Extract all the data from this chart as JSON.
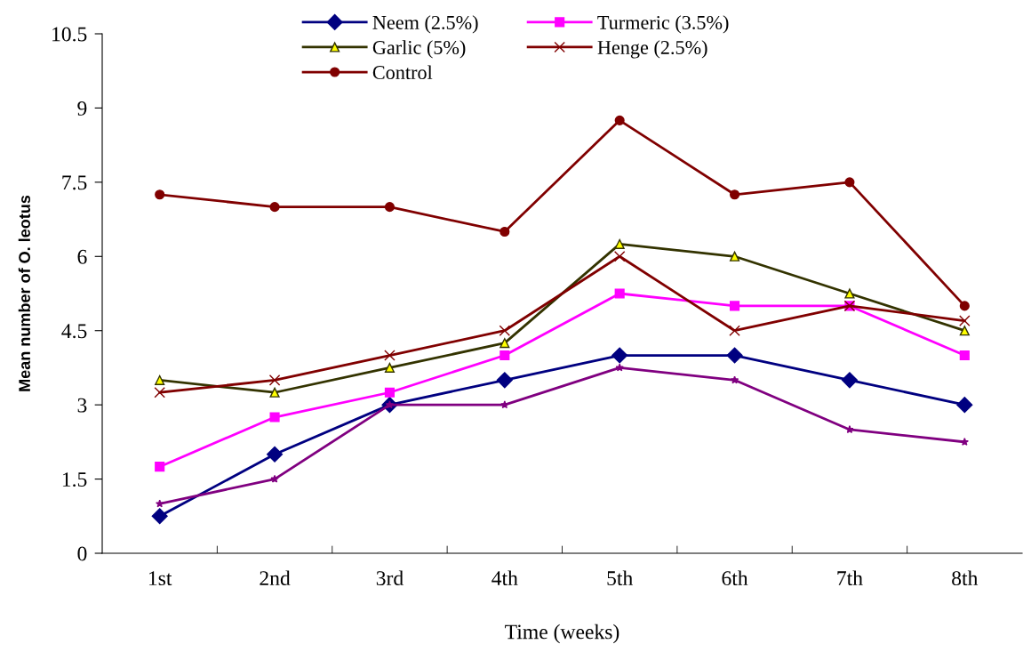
{
  "chart_data": {
    "type": "line",
    "xlabel": "Time (weeks)",
    "ylabel": "Mean number of O. leotus",
    "categories": [
      "1st",
      "2nd",
      "3rd",
      "4th",
      "5th",
      "6th",
      "7th",
      "8th"
    ],
    "ylim": [
      0,
      10.5
    ],
    "yticks": [
      0,
      1.5,
      3,
      4.5,
      6,
      7.5,
      9,
      10.5
    ],
    "grid": false,
    "legend": "top",
    "line_style": "solid",
    "series": [
      {
        "name": "Neem (2.5%)",
        "color": "#000080",
        "marker": "diamond",
        "values": [
          0.75,
          2,
          3,
          3.5,
          4,
          4,
          3.5,
          3
        ]
      },
      {
        "name": "Turmeric (3.5%)",
        "color": "#ff00ff",
        "marker": "square",
        "values": [
          1.75,
          2.75,
          3.25,
          4,
          5.25,
          5,
          5,
          4
        ]
      },
      {
        "name": "Garlic (5%)",
        "color": "#333300",
        "marker": "triangle",
        "values": [
          3.5,
          3.25,
          3.75,
          4.25,
          6.25,
          6,
          5.25,
          4.5
        ]
      },
      {
        "name": "Henge (2.5%)",
        "color": "#800000",
        "marker": "cross",
        "values": [
          3.25,
          3.5,
          4,
          4.5,
          6,
          4.5,
          5,
          4.7
        ]
      },
      {
        "color": "#800080",
        "marker": "star",
        "values": [
          1,
          1.5,
          3,
          3,
          3.75,
          3.5,
          2.5,
          2.25
        ]
      },
      {
        "name": "Control",
        "color": "#800000",
        "marker": "circle",
        "values": [
          7.25,
          7,
          7,
          6.5,
          8.75,
          7.25,
          7.5,
          5
        ]
      }
    ]
  }
}
